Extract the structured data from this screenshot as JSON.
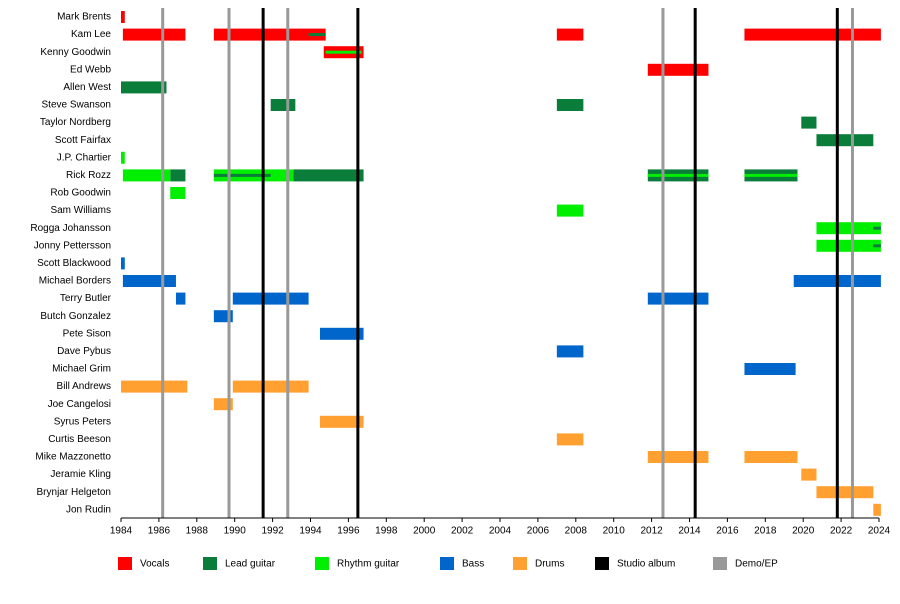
{
  "chart_data": {
    "type": "timeline",
    "xlim": [
      1984,
      2024
    ],
    "xticks": [
      1984,
      1986,
      1988,
      1990,
      1992,
      1994,
      1996,
      1998,
      2000,
      2002,
      2004,
      2006,
      2008,
      2010,
      2012,
      2014,
      2016,
      2018,
      2020,
      2022,
      2024
    ],
    "categories": [
      "Mark Brents",
      "Kam Lee",
      "Kenny Goodwin",
      "Ed Webb",
      "Allen West",
      "Steve Swanson",
      "Taylor Nordberg",
      "Scott Fairfax",
      "J.P. Chartier",
      "Rick Rozz",
      "Rob Goodwin",
      "Sam Williams",
      "Rogga Johansson",
      "Jonny Pettersson",
      "Scott Blackwood",
      "Michael Borders",
      "Terry Butler",
      "Butch Gonzalez",
      "Pete Sison",
      "Dave Pybus",
      "Michael Grim",
      "Bill Andrews",
      "Joe Cangelosi",
      "Syrus Peters",
      "Curtis Beeson",
      "Mike Mazzonetto",
      "Jeramie Kling",
      "Brynjar Helgeton",
      "Jon Rudin"
    ],
    "series": [
      {
        "name": "Vocals",
        "color": "#ff0000",
        "values": [
          [
            [
              1984.0,
              1984.2
            ]
          ],
          [
            [
              1984.1,
              1987.4
            ],
            [
              1988.9,
              1994.8
            ],
            [
              2007.0,
              2008.4
            ],
            [
              2016.9,
              2024.1
            ]
          ],
          [
            [
              1994.7,
              1996.8
            ]
          ],
          [
            [
              2011.8,
              2015.0
            ]
          ],
          null,
          null,
          null,
          null,
          null,
          null,
          null,
          null,
          null,
          null,
          null,
          null,
          null,
          null,
          null,
          null,
          null,
          null,
          null,
          null,
          null,
          null,
          null,
          null,
          null
        ]
      },
      {
        "name": "Lead guitar",
        "color": "#0a7d3a",
        "values": [
          null,
          null,
          null,
          null,
          [
            [
              1984.0,
              1986.4
            ]
          ],
          [
            [
              1991.9,
              1993.2
            ],
            [
              2007.0,
              2008.4
            ]
          ],
          [
            [
              2019.9,
              2020.7
            ]
          ],
          [
            [
              2020.7,
              2023.7
            ]
          ],
          null,
          [
            [
              1986.6,
              1987.4
            ],
            [
              1993.1,
              1996.8
            ],
            [
              2011.8,
              2015.0
            ],
            [
              2016.9,
              2019.7
            ]
          ],
          null,
          null,
          null,
          null,
          null,
          null,
          null,
          null,
          null,
          null,
          null,
          null,
          null,
          null,
          null,
          null,
          null,
          null,
          null
        ],
        "stripes": [
          null,
          [
            [
              1993.9,
              1994.8
            ]
          ],
          null,
          null,
          null,
          null,
          null,
          null,
          null,
          [
            [
              1988.9,
              1991.9
            ]
          ],
          null,
          null,
          [
            [
              2023.7,
              2024.1
            ]
          ],
          [
            [
              2023.7,
              2024.1
            ]
          ],
          null,
          null,
          null,
          null,
          null,
          null,
          null,
          null,
          null,
          null,
          null,
          null,
          null,
          null,
          null
        ]
      },
      {
        "name": "Rhythm guitar",
        "color": "#00ee00",
        "values": [
          null,
          null,
          null,
          null,
          null,
          null,
          null,
          null,
          [
            [
              1984.0,
              1984.2
            ]
          ],
          [
            [
              1984.1,
              1986.6
            ],
            [
              1988.9,
              1993.1
            ]
          ],
          [
            [
              1986.6,
              1987.4
            ]
          ],
          [
            [
              2007.0,
              2008.4
            ]
          ],
          [
            [
              2020.7,
              2024.1
            ]
          ],
          [
            [
              2020.7,
              2024.1
            ]
          ],
          null,
          null,
          null,
          null,
          null,
          null,
          null,
          null,
          null,
          null,
          null,
          null,
          null,
          null,
          null
        ],
        "stripes": [
          null,
          null,
          [
            [
              1994.8,
              1996.7
            ]
          ],
          null,
          null,
          null,
          null,
          null,
          null,
          [
            [
              2011.8,
              2015.0
            ],
            [
              2016.9,
              2019.7
            ]
          ],
          null,
          null,
          null,
          null,
          null,
          null,
          null,
          null,
          null,
          null,
          null,
          null,
          null,
          null,
          null,
          null,
          null,
          null,
          null
        ]
      },
      {
        "name": "Bass",
        "color": "#0066cc",
        "values": [
          null,
          null,
          null,
          null,
          null,
          null,
          null,
          null,
          null,
          null,
          null,
          null,
          null,
          null,
          [
            [
              1984.0,
              1984.2
            ]
          ],
          [
            [
              1984.1,
              1986.9
            ],
            [
              2019.5,
              2024.1
            ]
          ],
          [
            [
              1986.9,
              1987.4
            ],
            [
              1989.9,
              1993.9
            ],
            [
              2011.8,
              2015.0
            ]
          ],
          [
            [
              1988.9,
              1989.9
            ]
          ],
          [
            [
              1994.5,
              1996.8
            ]
          ],
          [
            [
              2007.0,
              2008.4
            ]
          ],
          [
            [
              2016.9,
              2019.6
            ]
          ],
          null,
          null,
          null,
          null,
          null,
          null,
          null,
          null
        ]
      },
      {
        "name": "Drums",
        "color": "#ffa030",
        "values": [
          null,
          null,
          null,
          null,
          null,
          null,
          null,
          null,
          null,
          null,
          null,
          null,
          null,
          null,
          null,
          null,
          null,
          null,
          null,
          null,
          null,
          [
            [
              1984.0,
              1987.5
            ],
            [
              1989.9,
              1993.9
            ]
          ],
          [
            [
              1988.9,
              1989.9
            ]
          ],
          [
            [
              1994.5,
              1996.8
            ]
          ],
          [
            [
              2007.0,
              2008.4
            ]
          ],
          [
            [
              2011.8,
              2015.0
            ],
            [
              2016.9,
              2019.7
            ]
          ],
          [
            [
              2019.9,
              2020.7
            ]
          ],
          [
            [
              2020.7,
              2023.7
            ]
          ],
          [
            [
              2023.7,
              2024.1
            ]
          ]
        ]
      }
    ],
    "markers": [
      {
        "name": "Studio album",
        "color": "#000000",
        "x": [
          1991.5,
          1996.5,
          2014.3,
          2021.8
        ]
      },
      {
        "name": "Demo/EP",
        "color": "#999999",
        "x": [
          1986.2,
          1989.7,
          1992.8,
          2012.6,
          2022.6
        ]
      }
    ]
  }
}
